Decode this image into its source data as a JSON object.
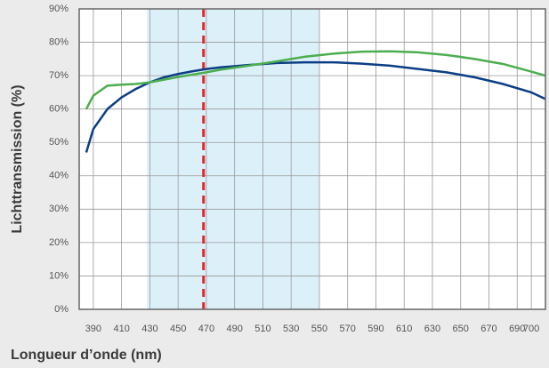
{
  "chart_data": {
    "type": "line",
    "xlabel": "Longueur d’onde (nm)",
    "ylabel": "Lichttransmission (%)",
    "x": [
      385,
      390,
      400,
      410,
      420,
      430,
      440,
      450,
      460,
      470,
      480,
      500,
      520,
      540,
      560,
      580,
      600,
      620,
      640,
      660,
      680,
      700,
      710
    ],
    "series": [
      {
        "name": "Blue curve",
        "color": "#0b3e84",
        "values": [
          47,
          54,
          60,
          63.5,
          66,
          68,
          69.5,
          70.5,
          71.3,
          72,
          72.5,
          73.2,
          73.8,
          74,
          74,
          73.6,
          73,
          72,
          71,
          69.5,
          67.5,
          65,
          63
        ]
      },
      {
        "name": "Green curve",
        "color": "#4cae4f",
        "values": [
          60,
          64,
          67,
          67.3,
          67.5,
          68,
          68.8,
          69.6,
          70.3,
          71,
          71.8,
          73,
          74.3,
          75.7,
          76.6,
          77.2,
          77.3,
          77,
          76.2,
          75,
          73.5,
          71.2,
          70
        ]
      }
    ],
    "xlim": [
      380,
      710
    ],
    "ylim": [
      0,
      90
    ],
    "xticks": [
      390,
      410,
      430,
      450,
      470,
      490,
      510,
      530,
      550,
      570,
      590,
      610,
      630,
      650,
      670,
      690,
      700
    ],
    "yticks": [
      {
        "value": 0,
        "label": "0%"
      },
      {
        "value": 10,
        "label": "10%"
      },
      {
        "value": 20,
        "label": "20%"
      },
      {
        "value": 30,
        "label": "30%"
      },
      {
        "value": 40,
        "label": "40%"
      },
      {
        "value": 50,
        "label": "50%"
      },
      {
        "value": 60,
        "label": "60%"
      },
      {
        "value": 70,
        "label": "70%"
      },
      {
        "value": 80,
        "label": "80%"
      },
      {
        "value": 90,
        "label": "90%"
      }
    ],
    "band": [
      428,
      550
    ],
    "band_color": "#dcf0fa",
    "marker_x": 468,
    "marker_color": "#e8232a",
    "grid": true
  }
}
